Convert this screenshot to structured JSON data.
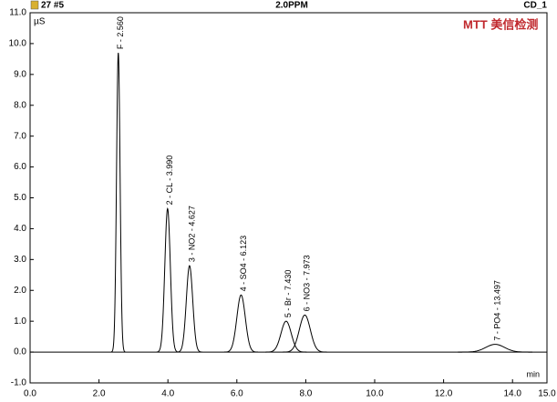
{
  "chart_data": {
    "type": "chromatogram",
    "header_left": "27 #5",
    "title": "2.0PPM",
    "header_right": "CD_1",
    "logo": "MTT 美信检测",
    "y_label": "µS",
    "x_label": "min",
    "xlim": [
      0,
      15
    ],
    "xticks": [
      {
        "value": 0,
        "label": "0.0"
      },
      {
        "value": 2,
        "label": "2.0"
      },
      {
        "value": 4,
        "label": "4.0"
      },
      {
        "value": 6,
        "label": "6.0"
      },
      {
        "value": 8,
        "label": "8.0"
      },
      {
        "value": 10,
        "label": "10.0"
      },
      {
        "value": 12,
        "label": "12.0"
      },
      {
        "value": 14,
        "label": "14.0"
      },
      {
        "value": 15,
        "label": "15.0"
      }
    ],
    "ylim": [
      -1,
      11
    ],
    "yticks": [
      {
        "value": -1,
        "label": "-1.0"
      },
      {
        "value": 0,
        "label": "0.0"
      },
      {
        "value": 1,
        "label": "1.0"
      },
      {
        "value": 2,
        "label": "2.0"
      },
      {
        "value": 3,
        "label": "3.0"
      },
      {
        "value": 4,
        "label": "4.0"
      },
      {
        "value": 5,
        "label": "5.0"
      },
      {
        "value": 6,
        "label": "6.0"
      },
      {
        "value": 7,
        "label": "7.0"
      },
      {
        "value": 8,
        "label": "8.0"
      },
      {
        "value": 9,
        "label": "9.0"
      },
      {
        "value": 10,
        "label": "10.0"
      },
      {
        "value": 11,
        "label": "11.0"
      }
    ],
    "color": "#000000",
    "peaks": [
      {
        "label": "F - 2.560",
        "time": 2.56,
        "height": 9.7
      },
      {
        "label": "2 - CL - 3.990",
        "time": 3.99,
        "height": 4.65
      },
      {
        "label": "3 - NO2 - 4.627",
        "time": 4.627,
        "height": 2.8
      },
      {
        "label": "4 - SO4 - 6.123",
        "time": 6.123,
        "height": 1.85
      },
      {
        "label": "5 - Br - 7.430",
        "time": 7.43,
        "height": 1.0
      },
      {
        "label": "6 - NO3 - 7.973",
        "time": 7.973,
        "height": 1.2
      },
      {
        "label": "7 - PO4 - 13.497",
        "time": 13.497,
        "height": 0.25
      }
    ]
  }
}
